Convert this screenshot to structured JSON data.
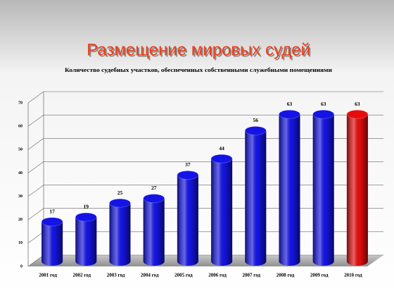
{
  "chart_data": {
    "type": "bar",
    "title": "Размещение мировых судей",
    "subtitle": "Количество судебных участков, обеспеченных собственными служебными помещениями",
    "categories": [
      "2001 год",
      "2002 год",
      "2003 год",
      "2004 год",
      "2005 год",
      "2006 год",
      "2007 год",
      "2008 год",
      "2009 год",
      "2010 год"
    ],
    "values": [
      17,
      19,
      25,
      27,
      37,
      44,
      56,
      63,
      63,
      63
    ],
    "colors": [
      "#1414e6",
      "#1414e6",
      "#1414e6",
      "#1414e6",
      "#1414e6",
      "#1414e6",
      "#1414e6",
      "#1414e6",
      "#1414e6",
      "#e60c0c"
    ],
    "ylim": [
      0,
      70
    ],
    "yticks": [
      0,
      10,
      20,
      30,
      40,
      50,
      60,
      70
    ],
    "grid": true
  }
}
